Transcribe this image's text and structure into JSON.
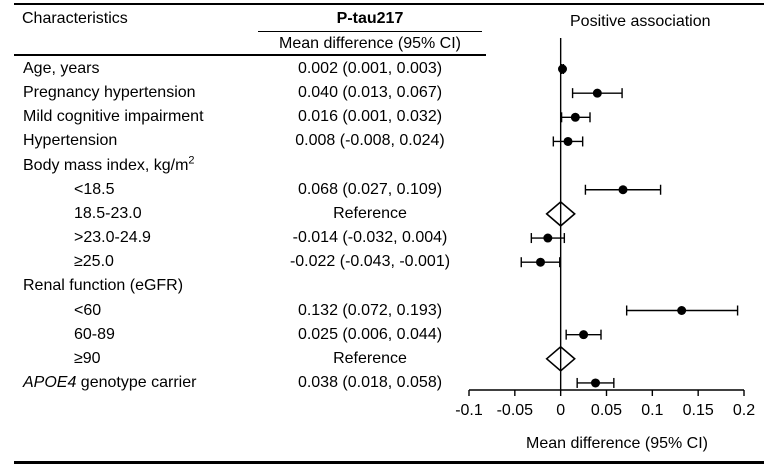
{
  "table": {
    "characteristics_header": "Characteristics",
    "biomarker_header": "P-tau217",
    "subheader": "Mean difference (95% CI)",
    "positive_label": "Positive association"
  },
  "rows": [
    {
      "name": "Age, years",
      "label_prefix": "",
      "label_italic": "",
      "label_rest": "Age, years",
      "label_sup": "",
      "indent": false,
      "ci_text": "0.002 (0.001, 0.003)",
      "type": "point",
      "est": 0.002,
      "lo": 0.001,
      "hi": 0.003
    },
    {
      "name": "Pregnancy hypertension",
      "label_prefix": "",
      "label_italic": "",
      "label_rest": "Pregnancy hypertension",
      "label_sup": "",
      "indent": false,
      "ci_text": "0.040 (0.013, 0.067)",
      "type": "point",
      "est": 0.04,
      "lo": 0.013,
      "hi": 0.067
    },
    {
      "name": "Mild cognitive impairment",
      "label_prefix": "",
      "label_italic": "",
      "label_rest": "Mild cognitive impairment",
      "label_sup": "",
      "indent": false,
      "ci_text": "0.016 (0.001, 0.032)",
      "type": "point",
      "est": 0.016,
      "lo": 0.001,
      "hi": 0.032
    },
    {
      "name": "Hypertension",
      "label_prefix": "",
      "label_italic": "",
      "label_rest": "Hypertension",
      "label_sup": "",
      "indent": false,
      "ci_text": "0.008 (-0.008, 0.024)",
      "type": "point",
      "est": 0.008,
      "lo": -0.008,
      "hi": 0.024
    },
    {
      "name": "Body mass index",
      "label_prefix": "",
      "label_italic": "",
      "label_rest": "Body mass index, kg/m",
      "label_sup": "2",
      "indent": false,
      "ci_text": "",
      "type": "header"
    },
    {
      "name": "bmi-lt-18-5",
      "label_prefix": "",
      "label_italic": "",
      "label_rest": "<18.5",
      "label_sup": "",
      "indent": true,
      "ci_text": "0.068 (0.027, 0.109)",
      "type": "point",
      "est": 0.068,
      "lo": 0.027,
      "hi": 0.109
    },
    {
      "name": "bmi-18-5-23",
      "label_prefix": "",
      "label_italic": "",
      "label_rest": "18.5-23.0",
      "label_sup": "",
      "indent": true,
      "ci_text": "Reference",
      "type": "reference",
      "est": 0
    },
    {
      "name": "bmi-23-24-9",
      "label_prefix": "",
      "label_italic": "",
      "label_rest": ">23.0-24.9",
      "label_sup": "",
      "indent": true,
      "ci_text": "-0.014 (-0.032, 0.004)",
      "type": "point",
      "est": -0.014,
      "lo": -0.032,
      "hi": 0.004
    },
    {
      "name": "bmi-ge-25",
      "label_prefix": "",
      "label_italic": "",
      "label_rest": "≥25.0",
      "label_sup": "",
      "indent": true,
      "ci_text": "-0.022 (-0.043, -0.001)",
      "type": "point",
      "est": -0.022,
      "lo": -0.043,
      "hi": -0.001
    },
    {
      "name": "Renal function",
      "label_prefix": "",
      "label_italic": "",
      "label_rest": "Renal function (eGFR)",
      "label_sup": "",
      "indent": false,
      "ci_text": "",
      "type": "header"
    },
    {
      "name": "egfr-lt-60",
      "label_prefix": "",
      "label_italic": "",
      "label_rest": "<60",
      "label_sup": "",
      "indent": true,
      "ci_text": "0.132 (0.072, 0.193)",
      "type": "point",
      "est": 0.132,
      "lo": 0.072,
      "hi": 0.193
    },
    {
      "name": "egfr-60-89",
      "label_prefix": "",
      "label_italic": "",
      "label_rest": "60-89",
      "label_sup": "",
      "indent": true,
      "ci_text": "0.025 (0.006, 0.044)",
      "type": "point",
      "est": 0.025,
      "lo": 0.006,
      "hi": 0.044
    },
    {
      "name": "egfr-ge-90",
      "label_prefix": "",
      "label_italic": "",
      "label_rest": "≥90",
      "label_sup": "",
      "indent": true,
      "ci_text": "Reference",
      "type": "reference",
      "est": 0
    },
    {
      "name": "APOE4 carrier",
      "label_prefix": "",
      "label_italic": "APOE4",
      "label_rest": " genotype carrier",
      "label_sup": "",
      "indent": false,
      "ci_text": "0.038 (0.018, 0.058)",
      "type": "point",
      "est": 0.038,
      "lo": 0.018,
      "hi": 0.058
    }
  ],
  "chart_data": {
    "type": "forest",
    "title": "P-tau217",
    "xlabel": "Mean difference (95% CI)",
    "xlim": [
      -0.1,
      0.2
    ],
    "ticks": [
      -0.1,
      -0.05,
      0,
      0.05,
      0.1,
      0.15,
      0.2
    ],
    "tick_labels": [
      "-0.1",
      "-0.05",
      "0",
      "0.05",
      "0.1",
      "0.15",
      "0.2"
    ],
    "reference_line": 0,
    "annotation": "Positive association",
    "categories": [
      "Age, years",
      "Pregnancy hypertension",
      "Mild cognitive impairment",
      "Hypertension",
      "BMI <18.5",
      "BMI 18.5-23.0 (Reference)",
      "BMI >23.0-24.9",
      "BMI ≥25.0",
      "eGFR <60",
      "eGFR 60-89",
      "eGFR ≥90 (Reference)",
      "APOE4 genotype carrier"
    ],
    "estimates": [
      0.002,
      0.04,
      0.016,
      0.008,
      0.068,
      0,
      -0.014,
      -0.022,
      0.132,
      0.025,
      0,
      0.038
    ],
    "ci_low": [
      0.001,
      0.013,
      0.001,
      -0.008,
      0.027,
      null,
      -0.032,
      -0.043,
      0.072,
      0.006,
      null,
      0.018
    ],
    "ci_high": [
      0.003,
      0.067,
      0.032,
      0.024,
      0.109,
      null,
      0.004,
      -0.001,
      0.193,
      0.044,
      null,
      0.058
    ]
  }
}
